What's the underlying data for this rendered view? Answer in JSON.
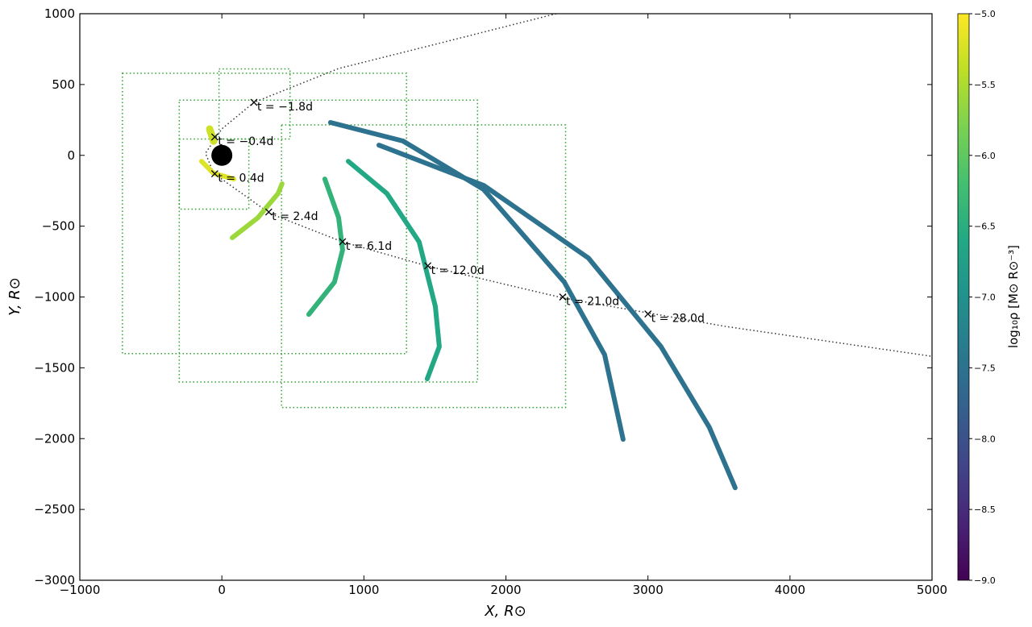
{
  "chart_data": {
    "type": "density-map",
    "xlabel": "X, R⊙",
    "ylabel": "Y, R⊙",
    "xlim": [
      -1000,
      5000
    ],
    "ylim": [
      -3000,
      1000
    ],
    "xticks": [
      {
        "value": -1000,
        "label": "−1000"
      },
      0,
      1000,
      2000,
      3000,
      4000,
      5000
    ],
    "yticks": [
      {
        "value": -3000,
        "label": "−3000"
      },
      {
        "value": -2500,
        "label": "−2500"
      },
      {
        "value": -2000,
        "label": "−2000"
      },
      {
        "value": -1500,
        "label": "−1500"
      },
      {
        "value": -1000,
        "label": "−1000"
      },
      {
        "value": -500,
        "label": "−500"
      },
      0,
      500,
      1000
    ],
    "colormap": "viridis",
    "colorbar_label": "log₁₀ρ [M⊙ R⊙⁻³]",
    "clim": [
      -9,
      -5
    ],
    "cticks": [
      {
        "value": -9,
        "label": "−9.0"
      },
      {
        "value": -8.5,
        "label": "−8.5"
      },
      {
        "value": -8,
        "label": "−8.0"
      },
      {
        "value": -7.5,
        "label": "−7.5"
      },
      {
        "value": -7,
        "label": "−7.0"
      },
      {
        "value": -6.5,
        "label": "−6.5"
      },
      {
        "value": -6,
        "label": "−6.0"
      },
      {
        "value": -5.5,
        "label": "−5.5"
      },
      {
        "value": -5,
        "label": "−5.0"
      }
    ],
    "black_hole": {
      "x": 0,
      "y": 0
    },
    "orbit": {
      "x": [
        2354,
        1503,
        822,
        226,
        -1,
        -115,
        -58,
        141,
        339,
        850,
        1446,
        2411,
        3546,
        5000
      ],
      "y": [
        1000,
        784,
        613,
        374,
        186,
        15,
        -127,
        -269,
        -411,
        -611,
        -781,
        -1009,
        -1208,
        -1419
      ]
    },
    "boxes": [
      {
        "x": [
          -700,
          1300
        ],
        "y": [
          -1400,
          580
        ]
      },
      {
        "x": [
          -300,
          1800
        ],
        "y": [
          -1600,
          390
        ]
      },
      {
        "x": [
          -300,
          190
        ],
        "y": [
          -380,
          115
        ]
      },
      {
        "x": [
          -20,
          480
        ],
        "y": [
          115,
          610
        ]
      },
      {
        "x": [
          420,
          2420
        ],
        "y": [
          -1780,
          215
        ]
      }
    ],
    "streams": [
      {
        "x": [
          -86,
          -58
        ],
        "y": [
          186,
          100
        ],
        "value": -5.3
      },
      {
        "x": [
          -143,
          -58,
          84
        ],
        "y": [
          -42,
          -127,
          -167
        ],
        "value": -5.2
      },
      {
        "x": [
          73,
          254,
          396,
          424
        ],
        "y": [
          -582,
          -440,
          -269,
          -201
        ],
        "value": -5.6
      },
      {
        "x": [
          725,
          822,
          850,
          793,
          612
        ],
        "y": [
          -167,
          -440,
          -668,
          -895,
          -1123
        ],
        "value": -6.4
      },
      {
        "x": [
          890,
          1162,
          1389,
          1503,
          1531,
          1446
        ],
        "y": [
          -42,
          -269,
          -611,
          -1066,
          -1351,
          -1578
        ],
        "value": -6.6
      },
      {
        "x": [
          765,
          1276,
          1843,
          2411,
          2695,
          2825
        ],
        "y": [
          232,
          101,
          -241,
          -895,
          -1408,
          -2005
        ],
        "value": -7.5
      },
      {
        "x": [
          1106,
          1843,
          2581,
          3092,
          3432,
          3614
        ],
        "y": [
          72,
          -212,
          -725,
          -1351,
          -1920,
          -2347
        ],
        "value": -7.5
      }
    ],
    "annotations": [
      {
        "x": 226,
        "y": 374,
        "label": "t = −1.8d"
      },
      {
        "x": -50,
        "y": 130,
        "label": "t = −0.4d"
      },
      {
        "x": -50,
        "y": -130,
        "label": "t = 0.4d"
      },
      {
        "x": 330,
        "y": -400,
        "label": "t = 2.4d"
      },
      {
        "x": 850,
        "y": -610,
        "label": "t = 6.1d"
      },
      {
        "x": 1450,
        "y": -780,
        "label": "t = 12.0d"
      },
      {
        "x": 2400,
        "y": -1000,
        "label": "t = 21.0d"
      },
      {
        "x": 3000,
        "y": -1120,
        "label": "t = 28.0d"
      }
    ]
  }
}
